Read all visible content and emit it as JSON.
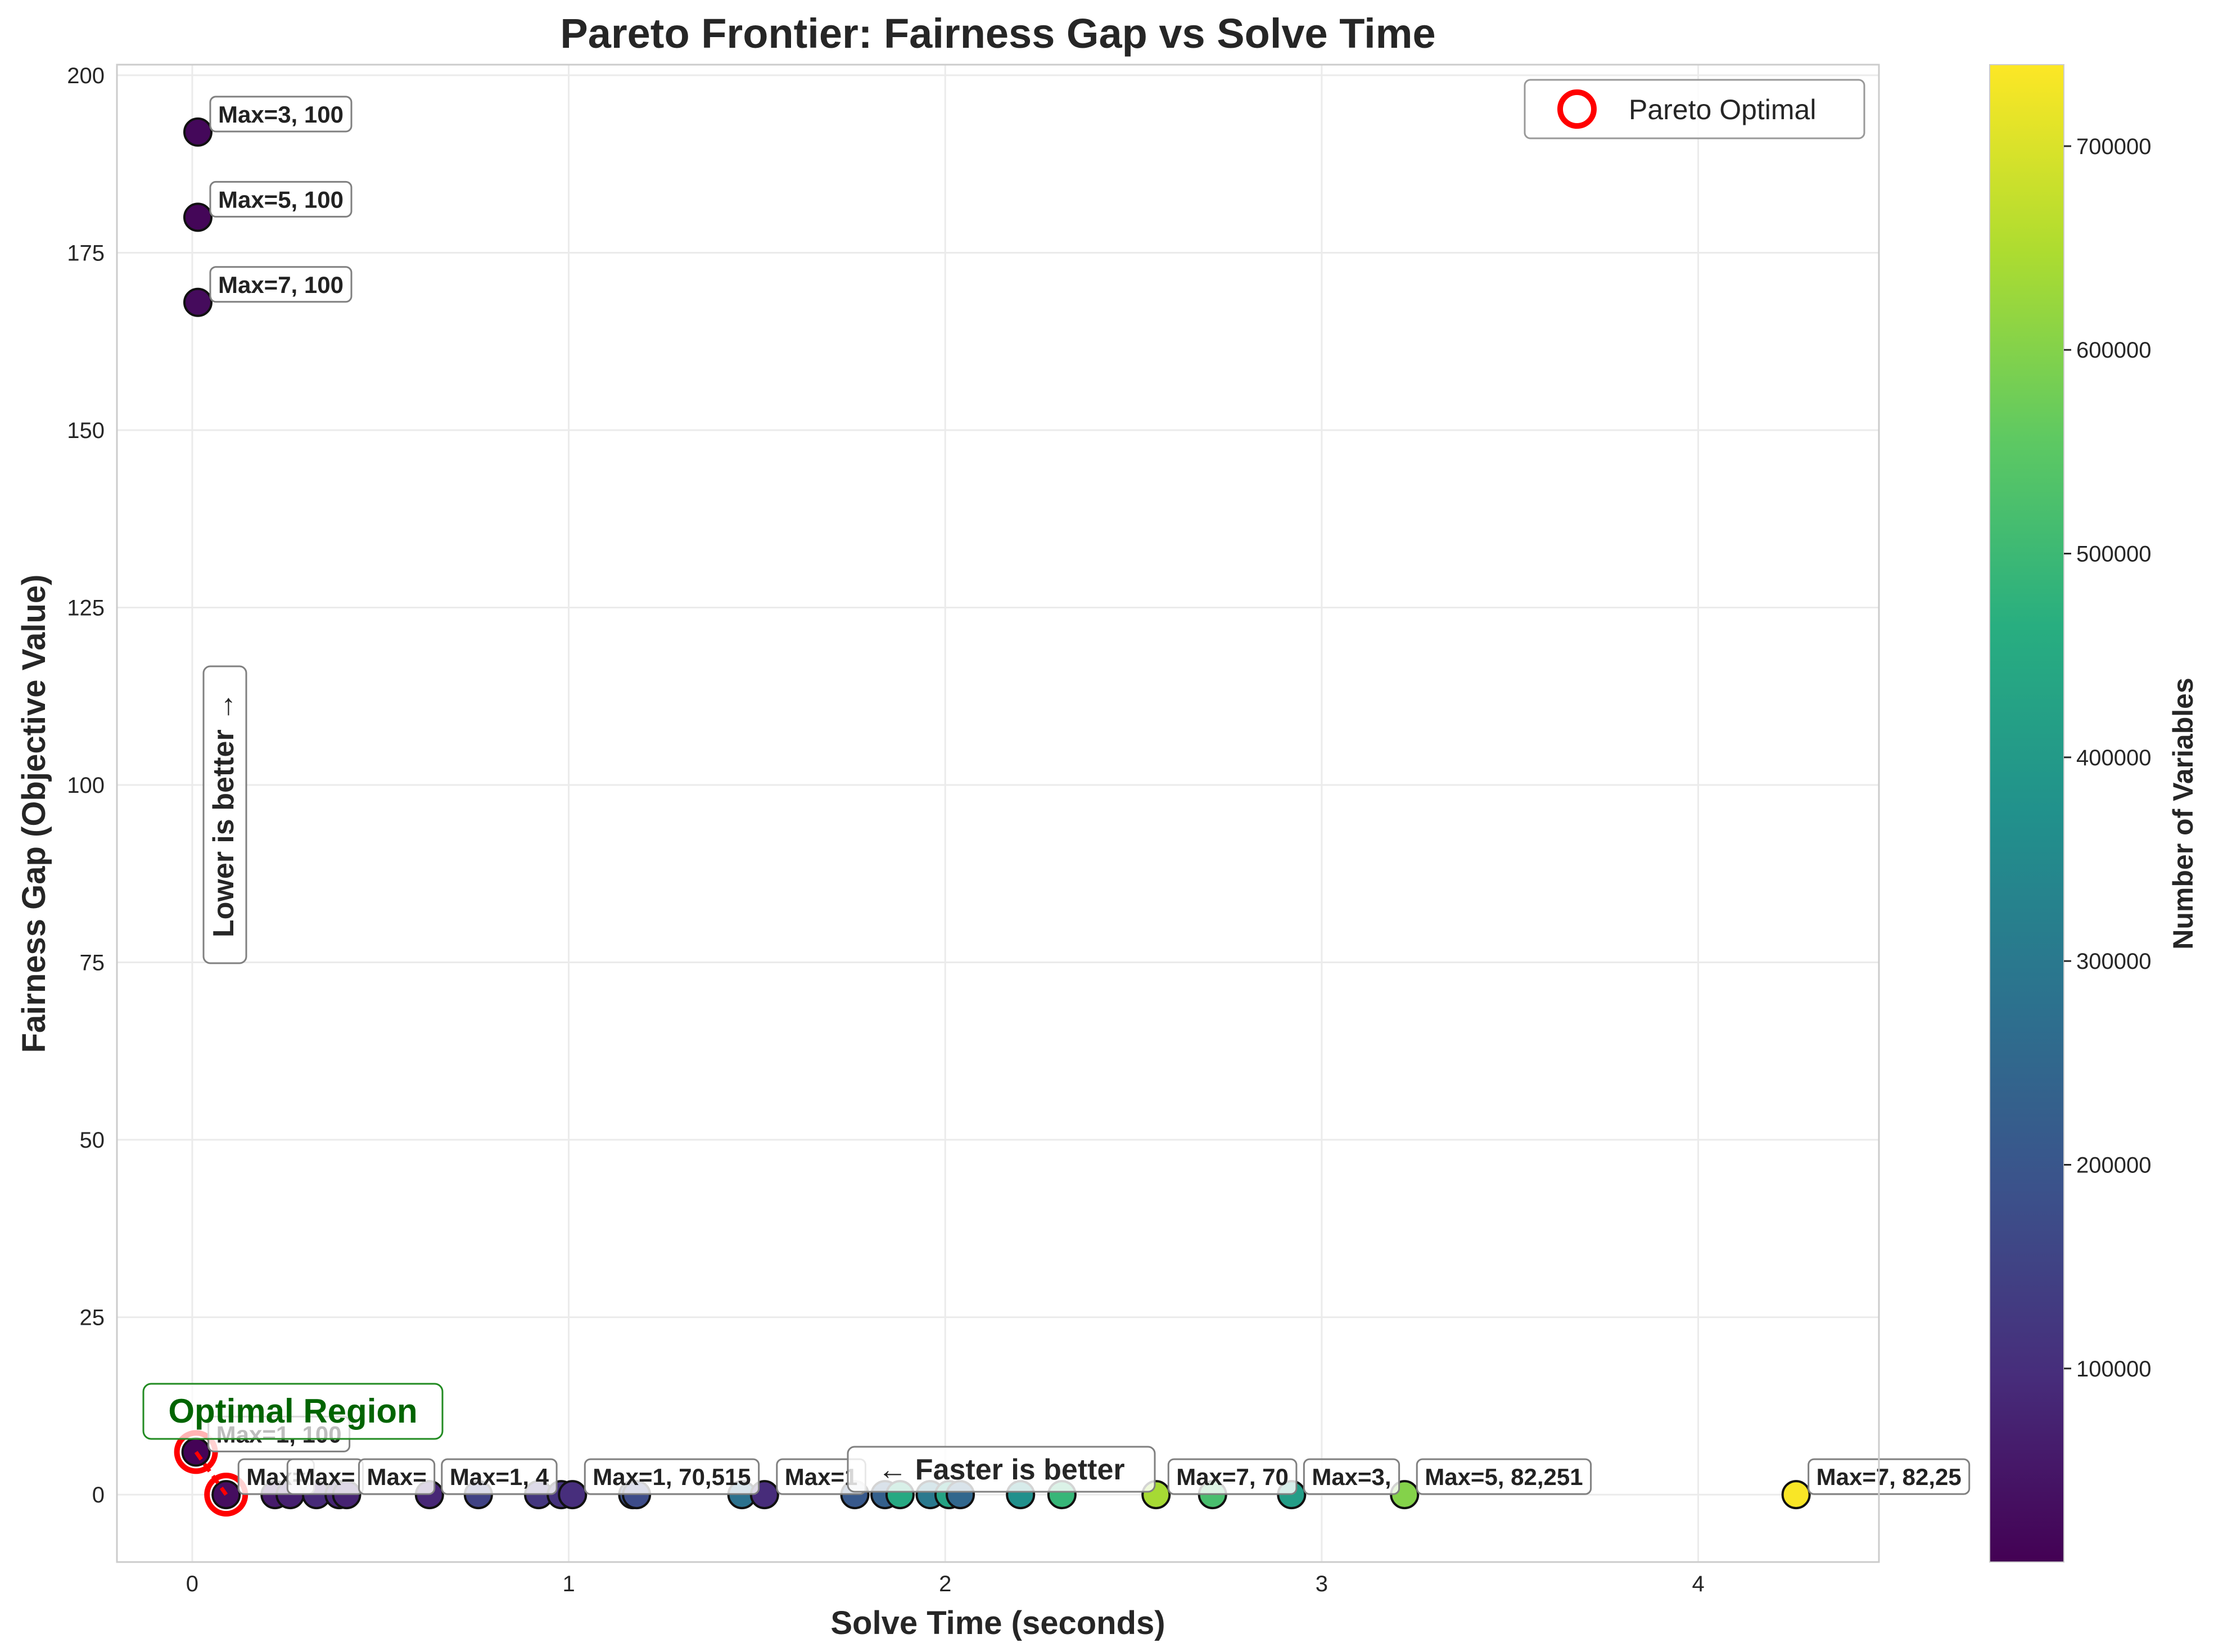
{
  "chart_data": {
    "type": "scatter",
    "title": "Pareto Frontier: Fairness Gap vs Solve Time",
    "xlabel": "Solve Time (seconds)",
    "ylabel": "Fairness Gap (Objective Value)",
    "xlim": [
      -0.2,
      4.48
    ],
    "ylim": [
      -9.5,
      201.5
    ],
    "xticks": [
      0,
      1,
      2,
      3,
      4
    ],
    "yticks": [
      0,
      25,
      50,
      75,
      100,
      125,
      150,
      175,
      200
    ],
    "grid": true,
    "colorbar": {
      "label": "Number of Variables",
      "colormap": "viridis",
      "range": [
        5000,
        740000
      ],
      "ticks": [
        100000,
        200000,
        300000,
        400000,
        500000,
        600000,
        700000
      ]
    },
    "legend": {
      "entries": [
        "Pareto Optimal"
      ],
      "placement": "top-right",
      "marker_color": "#ff0000"
    },
    "points": [
      {
        "x": 0.015,
        "y": 192,
        "v": 20000
      },
      {
        "x": 0.015,
        "y": 180,
        "v": 15000
      },
      {
        "x": 0.015,
        "y": 168,
        "v": 25000
      },
      {
        "x": 0.01,
        "y": 6,
        "v": 10000,
        "pareto": true
      },
      {
        "x": 0.09,
        "y": 0,
        "v": 30000,
        "pareto": true
      },
      {
        "x": 0.22,
        "y": 0,
        "v": 60000
      },
      {
        "x": 0.26,
        "y": 0,
        "v": 70000
      },
      {
        "x": 0.33,
        "y": 0,
        "v": 90000
      },
      {
        "x": 0.39,
        "y": 0,
        "v": 80000
      },
      {
        "x": 0.41,
        "y": 0,
        "v": 75000
      },
      {
        "x": 0.63,
        "y": 0,
        "v": 85000
      },
      {
        "x": 0.76,
        "y": 0,
        "v": 150000
      },
      {
        "x": 0.92,
        "y": 0,
        "v": 120000
      },
      {
        "x": 0.98,
        "y": 0,
        "v": 110000
      },
      {
        "x": 1.01,
        "y": 0,
        "v": 100000
      },
      {
        "x": 1.17,
        "y": 0,
        "v": 190000
      },
      {
        "x": 1.18,
        "y": 0,
        "v": 175000
      },
      {
        "x": 1.46,
        "y": 0,
        "v": 280000
      },
      {
        "x": 1.52,
        "y": 0,
        "v": 95000
      },
      {
        "x": 1.76,
        "y": 0,
        "v": 210000
      },
      {
        "x": 1.84,
        "y": 0,
        "v": 230000
      },
      {
        "x": 1.88,
        "y": 0,
        "v": 450000
      },
      {
        "x": 1.96,
        "y": 0,
        "v": 300000
      },
      {
        "x": 2.01,
        "y": 0,
        "v": 430000
      },
      {
        "x": 2.04,
        "y": 0,
        "v": 250000
      },
      {
        "x": 2.2,
        "y": 0,
        "v": 370000
      },
      {
        "x": 2.31,
        "y": 0,
        "v": 490000
      },
      {
        "x": 2.56,
        "y": 0,
        "v": 640000
      },
      {
        "x": 2.71,
        "y": 0,
        "v": 520000
      },
      {
        "x": 2.92,
        "y": 0,
        "v": 410000
      },
      {
        "x": 3.22,
        "y": 0,
        "v": 600000
      },
      {
        "x": 4.26,
        "y": 0,
        "v": 735000
      }
    ],
    "annotations": [
      {
        "text": "Max=3, 100",
        "x": 0.015,
        "y": 192
      },
      {
        "text": "Max=5, 100",
        "x": 0.015,
        "y": 180
      },
      {
        "text": "Max=7, 100",
        "x": 0.015,
        "y": 168
      },
      {
        "text": "Max=1, 100",
        "x": 0.01,
        "y": 6
      },
      {
        "text": "Max=",
        "x": 0.09,
        "y": 0
      },
      {
        "text": "Max=",
        "x": 0.22,
        "y": 0
      },
      {
        "text": "Max=",
        "x": 0.41,
        "y": 0
      },
      {
        "text": "Max=1, 4",
        "x": 0.63,
        "y": 0
      },
      {
        "text": "Max=1, 70,515",
        "x": 1.01,
        "y": 0
      },
      {
        "text": "Max=1",
        "x": 1.52,
        "y": 0
      },
      {
        "text": "Max=7, 70",
        "x": 2.56,
        "y": 0
      },
      {
        "text": "Max=3,",
        "x": 2.92,
        "y": 0
      },
      {
        "text": "Max=5, 82,251",
        "x": 3.22,
        "y": 0
      },
      {
        "text": "Max=7, 82,25",
        "x": 4.26,
        "y": 0
      }
    ],
    "hints": {
      "lower_better": "Lower is better →",
      "faster_better": "← Faster is better",
      "optimal_region": "Optimal Region"
    }
  }
}
